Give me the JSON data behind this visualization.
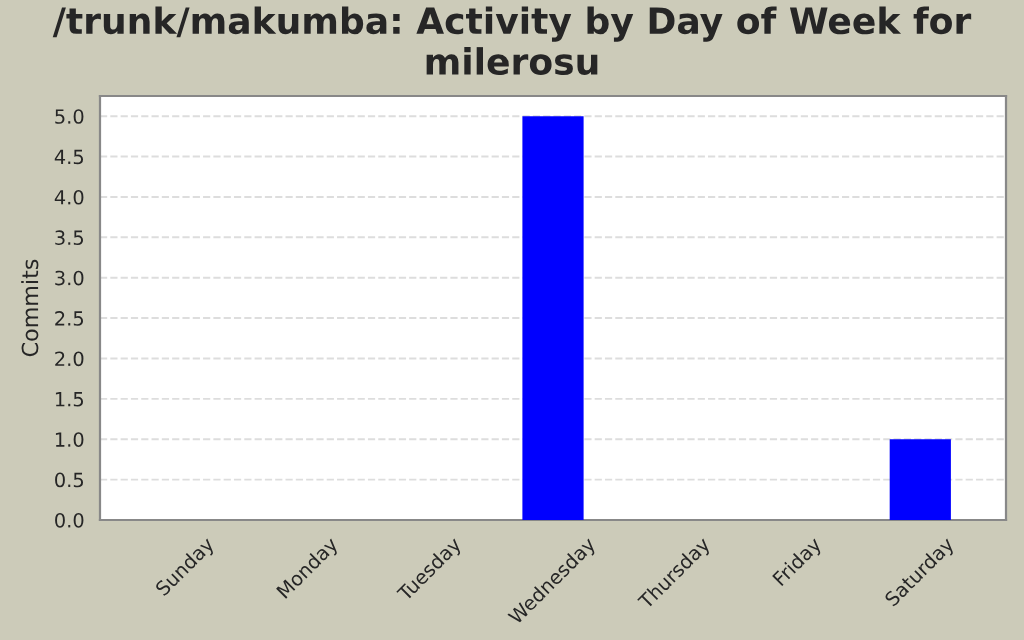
{
  "chart_data": {
    "type": "bar",
    "title": "/trunk/makumba: Activity by Day of Week for milerosu",
    "ylabel": "Commits",
    "categories": [
      "Sunday",
      "Monday",
      "Tuesday",
      "Wednesday",
      "Thursday",
      "Friday",
      "Saturday"
    ],
    "values": [
      0,
      0,
      0,
      5,
      0,
      0,
      1
    ],
    "color": "#0000ff",
    "ylim": [
      0,
      5.25
    ],
    "yticks": [
      {
        "value": 0,
        "label": "0.0"
      },
      {
        "value": 0.5,
        "label": "0.5"
      },
      {
        "value": 1,
        "label": "1.0"
      },
      {
        "value": 1.5,
        "label": "1.5"
      },
      {
        "value": 2,
        "label": "2.0"
      },
      {
        "value": 2.5,
        "label": "2.5"
      },
      {
        "value": 3,
        "label": "3.0"
      },
      {
        "value": 3.5,
        "label": "3.5"
      },
      {
        "value": 4,
        "label": "4.0"
      },
      {
        "value": 4.5,
        "label": "4.5"
      },
      {
        "value": 5,
        "label": "5.0"
      }
    ],
    "grid": "y"
  }
}
